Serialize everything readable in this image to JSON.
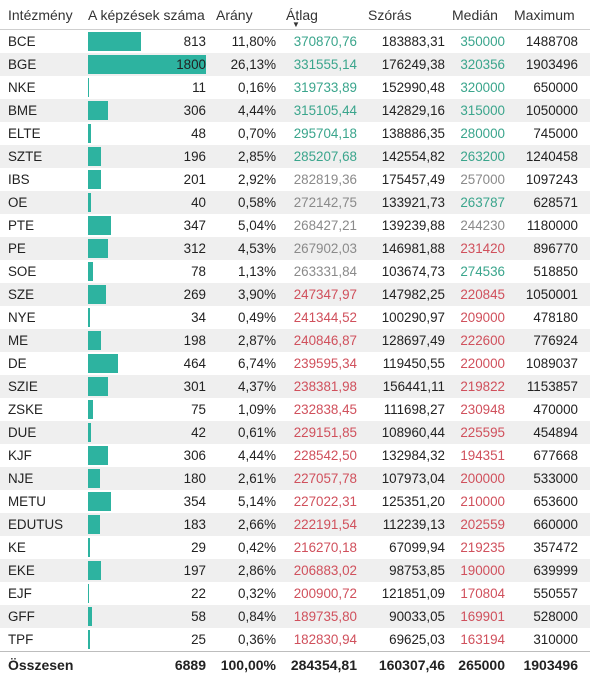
{
  "headers": {
    "intezmeny": "Intézmény",
    "kepzesek": "A képzések száma",
    "arany": "Arány",
    "atlag": "Átlag",
    "szoras": "Szórás",
    "median": "Medián",
    "maximum": "Maximum"
  },
  "colors": {
    "bar": "#2db3a0",
    "green": "#3aa58c",
    "gray": "#8a8a8a",
    "red": "#d0505c"
  },
  "rows": [
    {
      "name": "BCE",
      "count": "813",
      "bar_pct": 45.2,
      "arany": "11,80%",
      "atlag": "370870,76",
      "atlag_c": "green",
      "szoras": "183883,31",
      "median": "350000",
      "median_c": "green",
      "max": "1488708"
    },
    {
      "name": "BGE",
      "count": "1800",
      "bar_pct": 100,
      "arany": "26,13%",
      "atlag": "331555,14",
      "atlag_c": "green",
      "szoras": "176249,38",
      "median": "320356",
      "median_c": "green",
      "max": "1903496"
    },
    {
      "name": "NKE",
      "count": "11",
      "bar_pct": 0.6,
      "arany": "0,16%",
      "atlag": "319733,89",
      "atlag_c": "green",
      "szoras": "152990,48",
      "median": "320000",
      "median_c": "green",
      "max": "650000"
    },
    {
      "name": "BME",
      "count": "306",
      "bar_pct": 17,
      "arany": "4,44%",
      "atlag": "315105,44",
      "atlag_c": "green",
      "szoras": "142829,16",
      "median": "315000",
      "median_c": "green",
      "max": "1050000"
    },
    {
      "name": "ELTE",
      "count": "48",
      "bar_pct": 2.7,
      "arany": "0,70%",
      "atlag": "295704,18",
      "atlag_c": "green",
      "szoras": "138886,35",
      "median": "280000",
      "median_c": "green",
      "max": "745000"
    },
    {
      "name": "SZTE",
      "count": "196",
      "bar_pct": 10.9,
      "arany": "2,85%",
      "atlag": "285207,68",
      "atlag_c": "green",
      "szoras": "142554,82",
      "median": "263200",
      "median_c": "green",
      "max": "1240458"
    },
    {
      "name": "IBS",
      "count": "201",
      "bar_pct": 11.2,
      "arany": "2,92%",
      "atlag": "282819,36",
      "atlag_c": "gray",
      "szoras": "175457,49",
      "median": "257000",
      "median_c": "gray",
      "max": "1097243"
    },
    {
      "name": "OE",
      "count": "40",
      "bar_pct": 2.2,
      "arany": "0,58%",
      "atlag": "272142,75",
      "atlag_c": "gray",
      "szoras": "133921,73",
      "median": "263787",
      "median_c": "green",
      "max": "628571"
    },
    {
      "name": "PTE",
      "count": "347",
      "bar_pct": 19.3,
      "arany": "5,04%",
      "atlag": "268427,21",
      "atlag_c": "gray",
      "szoras": "139239,88",
      "median": "244230",
      "median_c": "gray",
      "max": "1180000"
    },
    {
      "name": "PE",
      "count": "312",
      "bar_pct": 17.3,
      "arany": "4,53%",
      "atlag": "267902,03",
      "atlag_c": "gray",
      "szoras": "146981,88",
      "median": "231420",
      "median_c": "red",
      "max": "896770"
    },
    {
      "name": "SOE",
      "count": "78",
      "bar_pct": 4.3,
      "arany": "1,13%",
      "atlag": "263331,84",
      "atlag_c": "gray",
      "szoras": "103674,73",
      "median": "274536",
      "median_c": "green",
      "max": "518850"
    },
    {
      "name": "SZE",
      "count": "269",
      "bar_pct": 14.9,
      "arany": "3,90%",
      "atlag": "247347,97",
      "atlag_c": "red",
      "szoras": "147982,25",
      "median": "220845",
      "median_c": "red",
      "max": "1050001"
    },
    {
      "name": "NYE",
      "count": "34",
      "bar_pct": 1.9,
      "arany": "0,49%",
      "atlag": "241344,52",
      "atlag_c": "red",
      "szoras": "100290,97",
      "median": "209000",
      "median_c": "red",
      "max": "478180"
    },
    {
      "name": "ME",
      "count": "198",
      "bar_pct": 11,
      "arany": "2,87%",
      "atlag": "240846,87",
      "atlag_c": "red",
      "szoras": "128697,49",
      "median": "222600",
      "median_c": "red",
      "max": "776924"
    },
    {
      "name": "DE",
      "count": "464",
      "bar_pct": 25.8,
      "arany": "6,74%",
      "atlag": "239595,34",
      "atlag_c": "red",
      "szoras": "119450,55",
      "median": "220000",
      "median_c": "red",
      "max": "1089037"
    },
    {
      "name": "SZIE",
      "count": "301",
      "bar_pct": 16.7,
      "arany": "4,37%",
      "atlag": "238381,98",
      "atlag_c": "red",
      "szoras": "156441,11",
      "median": "219822",
      "median_c": "red",
      "max": "1153857"
    },
    {
      "name": "ZSKE",
      "count": "75",
      "bar_pct": 4.2,
      "arany": "1,09%",
      "atlag": "232838,45",
      "atlag_c": "red",
      "szoras": "111698,27",
      "median": "230948",
      "median_c": "red",
      "max": "470000"
    },
    {
      "name": "DUE",
      "count": "42",
      "bar_pct": 2.3,
      "arany": "0,61%",
      "atlag": "229151,85",
      "atlag_c": "red",
      "szoras": "108960,44",
      "median": "225595",
      "median_c": "red",
      "max": "454894"
    },
    {
      "name": "KJF",
      "count": "306",
      "bar_pct": 17,
      "arany": "4,44%",
      "atlag": "228542,50",
      "atlag_c": "red",
      "szoras": "132984,32",
      "median": "194351",
      "median_c": "red",
      "max": "677668"
    },
    {
      "name": "NJE",
      "count": "180",
      "bar_pct": 10,
      "arany": "2,61%",
      "atlag": "227057,78",
      "atlag_c": "red",
      "szoras": "107973,04",
      "median": "200000",
      "median_c": "red",
      "max": "533000"
    },
    {
      "name": "METU",
      "count": "354",
      "bar_pct": 19.7,
      "arany": "5,14%",
      "atlag": "227022,31",
      "atlag_c": "red",
      "szoras": "125351,20",
      "median": "210000",
      "median_c": "red",
      "max": "653600"
    },
    {
      "name": "EDUTUS",
      "count": "183",
      "bar_pct": 10.2,
      "arany": "2,66%",
      "atlag": "222191,54",
      "atlag_c": "red",
      "szoras": "112239,13",
      "median": "202559",
      "median_c": "red",
      "max": "660000"
    },
    {
      "name": "KE",
      "count": "29",
      "bar_pct": 1.6,
      "arany": "0,42%",
      "atlag": "216270,18",
      "atlag_c": "red",
      "szoras": "67099,94",
      "median": "219235",
      "median_c": "red",
      "max": "357472"
    },
    {
      "name": "EKE",
      "count": "197",
      "bar_pct": 10.9,
      "arany": "2,86%",
      "atlag": "206883,02",
      "atlag_c": "red",
      "szoras": "98753,85",
      "median": "190000",
      "median_c": "red",
      "max": "639999"
    },
    {
      "name": "EJF",
      "count": "22",
      "bar_pct": 1.2,
      "arany": "0,32%",
      "atlag": "200900,72",
      "atlag_c": "red",
      "szoras": "121851,09",
      "median": "170804",
      "median_c": "red",
      "max": "550557"
    },
    {
      "name": "GFF",
      "count": "58",
      "bar_pct": 3.2,
      "arany": "0,84%",
      "atlag": "189735,80",
      "atlag_c": "red",
      "szoras": "90033,05",
      "median": "169901",
      "median_c": "red",
      "max": "528000"
    },
    {
      "name": "TPF",
      "count": "25",
      "bar_pct": 1.4,
      "arany": "0,36%",
      "atlag": "182830,94",
      "atlag_c": "red",
      "szoras": "69625,03",
      "median": "163194",
      "median_c": "red",
      "max": "310000"
    }
  ],
  "total": {
    "label": "Összesen",
    "count": "6889",
    "arany": "100,00%",
    "atlag": "284354,81",
    "szoras": "160307,46",
    "median": "265000",
    "max": "1903496"
  }
}
